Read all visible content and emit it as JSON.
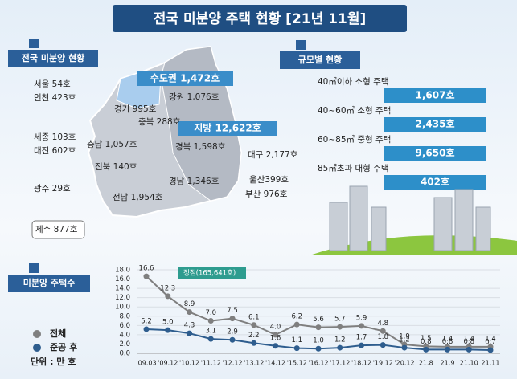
{
  "header": {
    "title": "전국 미분양 주택 현황 [21년 11월]"
  },
  "map": {
    "title": "전국 미분양 현황",
    "capital": "수도권 1,472호",
    "local": "지방 12,622호",
    "regions": [
      "서울 54호",
      "인천 423호",
      "경기 995호",
      "강원 1,076호",
      "충북 288호",
      "세종 103호",
      "대전 602호",
      "충남 1,057호",
      "경북 1,598호",
      "대구 2,177호",
      "전북 140호",
      "경남 1,346호",
      "울산399호",
      "부산 976호",
      "광주 29호",
      "전남 1,954호",
      "제주 877호"
    ]
  },
  "size": {
    "title": "규모별 현황",
    "items": [
      {
        "label": "40㎡이하 소형 주택",
        "value": "1,607호"
      },
      {
        "label": "40~60㎡ 소형 주택",
        "value": "2,435호"
      },
      {
        "label": "60~85㎡ 중형 주택",
        "value": "9,650호"
      },
      {
        "label": "85㎡초과 대형 주택",
        "value": "402호"
      }
    ]
  },
  "chart_data": {
    "type": "line",
    "title": "미분양 주택수",
    "unit": "단위 : 만 호",
    "annotation": "정점(165,641호)",
    "categories": [
      "'09.03",
      "'09.12",
      "'10.12",
      "'11.12",
      "'12.12",
      "'13.12",
      "'14.12",
      "'15.12",
      "'16.12",
      "'17.12",
      "'18.12",
      "'19.12",
      "'20.12",
      "21.8",
      "21.9",
      "21.10",
      "21.11"
    ],
    "series": [
      {
        "name": "전체",
        "color": "#7f7f7f",
        "values": [
          16.6,
          12.3,
          8.9,
          7.0,
          7.5,
          6.1,
          4.0,
          6.2,
          5.6,
          5.7,
          5.9,
          4.8,
          1.9,
          1.5,
          1.4,
          1.4,
          1.4
        ],
        "value_labels": [
          "16.6",
          "12.3",
          "8.9",
          "7.0",
          "7.5",
          "6.1",
          "4.0",
          "6.2",
          "5.6",
          "5.7",
          "5.9",
          "4.8",
          "1.9",
          "1.5",
          "1.4",
          "1.4",
          "1.4"
        ]
      },
      {
        "name": "준공 후",
        "color": "#2e5d8e",
        "values": [
          5.2,
          5.0,
          4.3,
          3.1,
          2.9,
          2.2,
          1.6,
          1.1,
          1.0,
          1.2,
          1.7,
          1.8,
          1.2,
          0.8,
          0.8,
          0.8,
          0.7
        ],
        "value_labels": [
          "5.2",
          "5.0",
          "4.3",
          "3.1",
          "2.9",
          "2.2",
          "1.6",
          "1.1",
          "1.0",
          "1.2",
          "1.7",
          "1.8",
          "1.2",
          "0.8",
          "0.8",
          "0.8",
          "0.7"
        ]
      }
    ],
    "ylim": [
      0,
      18
    ],
    "yticks": [
      {
        "value": 0,
        "label": "0.0"
      },
      {
        "value": 2,
        "label": "2.0"
      },
      {
        "value": 4,
        "label": "4.0"
      },
      {
        "value": 6,
        "label": "6.0"
      },
      {
        "value": 8,
        "label": "8.0"
      },
      {
        "value": 10,
        "label": "10.0"
      },
      {
        "value": 12,
        "label": "12.0"
      },
      {
        "value": 14,
        "label": "14.0"
      },
      {
        "value": 16,
        "label": "16.0"
      },
      {
        "value": 18,
        "label": "18.0"
      }
    ],
    "grid": true
  }
}
